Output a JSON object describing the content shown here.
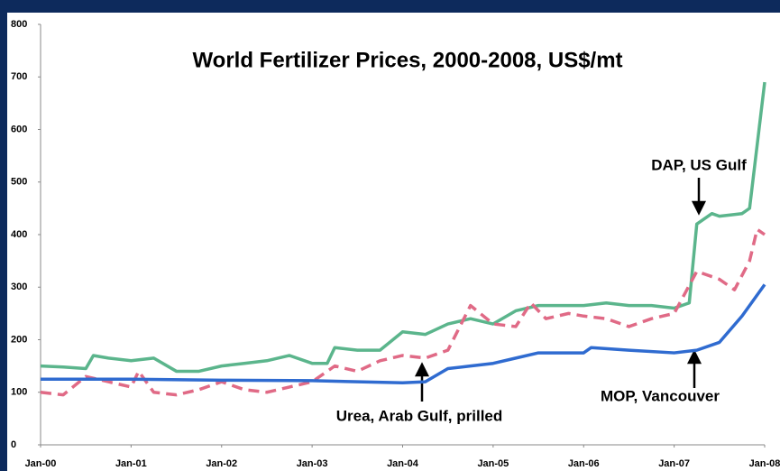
{
  "chart_data": {
    "type": "line",
    "title": "World Fertilizer Prices, 2000-2008, US$/mt",
    "annotations": [
      "DAP, US Gulf",
      "MOP, Vancouver",
      "Urea, Arab Gulf, prilled"
    ],
    "xlim": [
      0,
      96
    ],
    "xticks": [
      {
        "value": 0,
        "label": "Jan-00"
      },
      {
        "value": 12,
        "label": "Jan-01"
      },
      {
        "value": 24,
        "label": "Jan-02"
      },
      {
        "value": 36,
        "label": "Jan-03"
      },
      {
        "value": 48,
        "label": "Jan-04"
      },
      {
        "value": 60,
        "label": "Jan-05"
      },
      {
        "value": 72,
        "label": "Jan-06"
      },
      {
        "value": 84,
        "label": "Jan-07"
      },
      {
        "value": 96,
        "label": "Jan-08"
      }
    ],
    "ylim": [
      0,
      800
    ],
    "yticks": [
      0,
      100,
      200,
      300,
      400,
      500,
      600,
      700,
      800
    ],
    "grid": false,
    "series": [
      {
        "name": "DAP, US Gulf",
        "color": "#5bb58c",
        "dash": false,
        "x": [
          0,
          3,
          6,
          7,
          9,
          12,
          15,
          18,
          21,
          24,
          27,
          30,
          33,
          36,
          38,
          39,
          42,
          45,
          48,
          51,
          54,
          57,
          60,
          63,
          66,
          69,
          72,
          75,
          78,
          81,
          84,
          86,
          87,
          89,
          90,
          93,
          94,
          96
        ],
        "values": [
          150,
          148,
          145,
          170,
          165,
          160,
          165,
          140,
          140,
          150,
          155,
          160,
          170,
          155,
          155,
          185,
          180,
          180,
          215,
          210,
          230,
          240,
          230,
          255,
          265,
          265,
          265,
          270,
          265,
          265,
          260,
          270,
          420,
          440,
          435,
          440,
          450,
          690
        ]
      },
      {
        "name": "Urea, Arab Gulf, prilled",
        "color": "#e06a86",
        "dash": true,
        "x": [
          0,
          3,
          6,
          9,
          12,
          13,
          15,
          18,
          21,
          24,
          27,
          30,
          33,
          36,
          39,
          42,
          45,
          48,
          51,
          54,
          57,
          60,
          63,
          65,
          67,
          70,
          72,
          75,
          78,
          81,
          84,
          87,
          90,
          92,
          94,
          95,
          96
        ],
        "values": [
          100,
          95,
          130,
          120,
          110,
          140,
          100,
          95,
          105,
          120,
          105,
          100,
          110,
          120,
          150,
          140,
          160,
          170,
          165,
          180,
          265,
          230,
          225,
          270,
          240,
          250,
          245,
          240,
          225,
          240,
          250,
          330,
          315,
          295,
          350,
          410,
          400
        ]
      },
      {
        "name": "MOP, Vancouver",
        "color": "#2f6bd0",
        "dash": false,
        "x": [
          0,
          12,
          24,
          36,
          48,
          51,
          54,
          57,
          60,
          63,
          66,
          69,
          72,
          73,
          78,
          84,
          87,
          90,
          93,
          96
        ],
        "values": [
          125,
          125,
          123,
          122,
          118,
          120,
          145,
          150,
          155,
          165,
          175,
          175,
          175,
          185,
          180,
          175,
          180,
          195,
          245,
          305
        ]
      }
    ]
  }
}
